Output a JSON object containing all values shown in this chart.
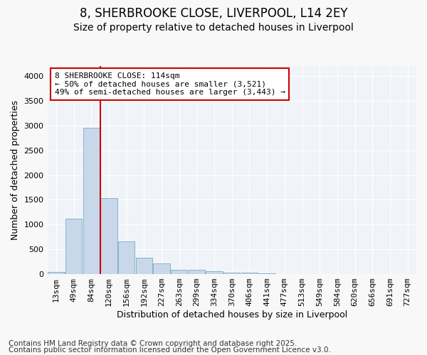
{
  "title": "8, SHERBROOKE CLOSE, LIVERPOOL, L14 2EY",
  "subtitle": "Size of property relative to detached houses in Liverpool",
  "xlabel": "Distribution of detached houses by size in Liverpool",
  "ylabel": "Number of detached properties",
  "bar_color": "#c8d8ea",
  "bar_edge_color": "#7aaac8",
  "bar_values": [
    50,
    1120,
    2960,
    1530,
    660,
    335,
    210,
    90,
    90,
    55,
    30,
    25,
    20,
    0,
    0,
    0,
    0,
    0,
    0,
    0,
    0
  ],
  "categories": [
    "13sqm",
    "49sqm",
    "84sqm",
    "120sqm",
    "156sqm",
    "192sqm",
    "227sqm",
    "263sqm",
    "299sqm",
    "334sqm",
    "370sqm",
    "406sqm",
    "441sqm",
    "477sqm",
    "513sqm",
    "549sqm",
    "584sqm",
    "620sqm",
    "656sqm",
    "691sqm",
    "727sqm"
  ],
  "ylim": [
    0,
    4200
  ],
  "yticks": [
    0,
    500,
    1000,
    1500,
    2000,
    2500,
    3000,
    3500,
    4000
  ],
  "vline_color": "#cc0000",
  "annotation_text": "8 SHERBROOKE CLOSE: 114sqm\n← 50% of detached houses are smaller (3,521)\n49% of semi-detached houses are larger (3,443) →",
  "annotation_box_color": "#ffffff",
  "annotation_box_edge": "#cc0000",
  "footer_line1": "Contains HM Land Registry data © Crown copyright and database right 2025.",
  "footer_line2": "Contains public sector information licensed under the Open Government Licence v3.0.",
  "bg_color": "#f8f8f8",
  "plot_bg_color": "#f0f4f8",
  "grid_color": "#ffffff",
  "title_fontsize": 12,
  "subtitle_fontsize": 10,
  "axis_label_fontsize": 9,
  "tick_fontsize": 8,
  "annotation_fontsize": 8,
  "footer_fontsize": 7.5
}
